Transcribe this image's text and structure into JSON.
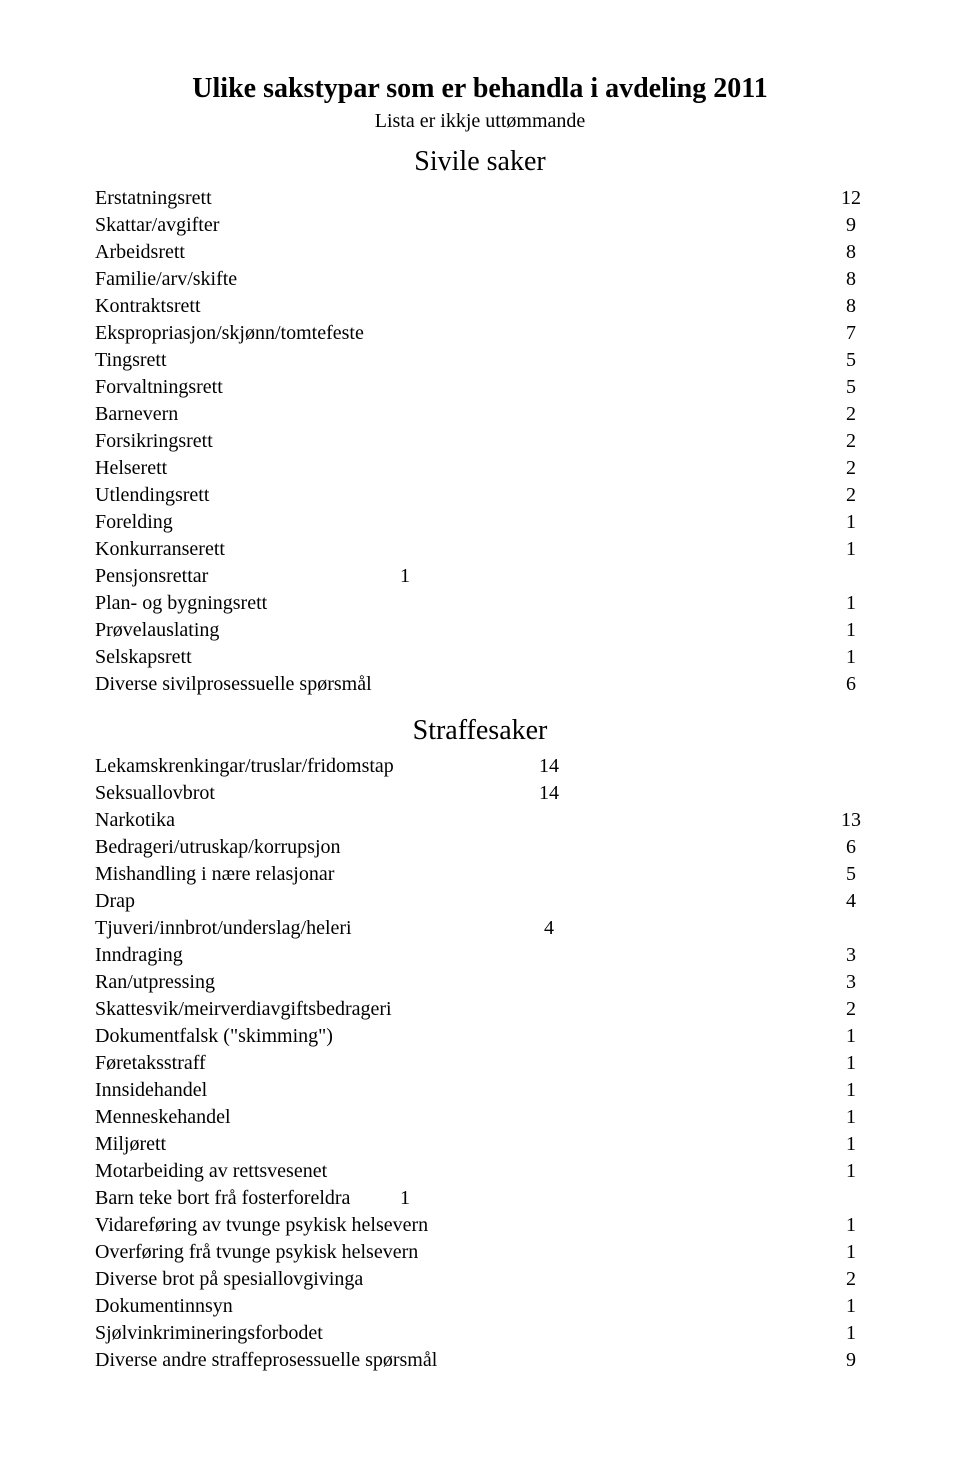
{
  "doc_title": "Ulike sakstypar som er behandla i avdeling 2011",
  "doc_subtitle": "Lista er ikkje uttømmande",
  "section1_title": "Sivile saker",
  "section2_title": "Straffesaker",
  "sivile": [
    {
      "lab": "Erstatningsrett",
      "val": "12"
    },
    {
      "lab": "Skattar/avgifter",
      "val": "9"
    },
    {
      "lab": "Arbeidsrett",
      "val": "8"
    },
    {
      "lab": "Familie/arv/skifte",
      "val": "8"
    },
    {
      "lab": "Kontraktsrett",
      "val": "8"
    },
    {
      "lab": "Ekspropriasjon/skjønn/tomtefeste",
      "val": "7"
    },
    {
      "lab": "Tingsrett",
      "val": "5"
    },
    {
      "lab": "Forvaltningsrett",
      "val": "5"
    },
    {
      "lab": "Barnevern",
      "val": "2"
    },
    {
      "lab": "Forsikringsrett",
      "val": "2"
    },
    {
      "lab": "Helserett",
      "val": "2"
    },
    {
      "lab": "Utlendingsrett",
      "val": "2"
    },
    {
      "lab": "Forelding",
      "val": "1"
    },
    {
      "lab": "Konkurranserett",
      "val": "1"
    },
    {
      "lab": "Pensjonsrettar",
      "mid": "1"
    },
    {
      "lab": "Plan- og bygningsrett",
      "val": "1"
    },
    {
      "lab": "Prøvelauslating",
      "val": "1"
    },
    {
      "lab": "Selskapsrett",
      "val": "1"
    },
    {
      "lab": "Diverse sivilprosessuelle spørsmål",
      "val": "6"
    }
  ],
  "straffe": [
    {
      "lab": "Lekamskrenkingar/truslar/fridomstap",
      "mid": "14",
      "col": 2
    },
    {
      "lab": "Seksuallovbrot",
      "mid": "14",
      "col": 2
    },
    {
      "lab": "Narkotika",
      "val": "13"
    },
    {
      "lab": "Bedrageri/utruskap/korrupsjon",
      "val": "6"
    },
    {
      "lab": "Mishandling i nære relasjonar",
      "val": "5"
    },
    {
      "lab": "Drap",
      "val": "4"
    },
    {
      "lab": "Tjuveri/innbrot/underslag/heleri",
      "mid": "4",
      "col": 2
    },
    {
      "lab": "Inndraging",
      "val": "3"
    },
    {
      "lab": "Ran/utpressing",
      "val": "3"
    },
    {
      "lab": "Skattesvik/meirverdiavgiftsbedrageri",
      "val": "2"
    },
    {
      "lab": "Dokumentfalsk (\"skimming\")",
      "val": "1"
    },
    {
      "lab": "Føretaksstraff",
      "val": "1"
    },
    {
      "lab": "Innsidehandel",
      "val": "1"
    },
    {
      "lab": "Menneskehandel",
      "val": "1"
    },
    {
      "lab": "Miljørett",
      "val": "1"
    },
    {
      "lab": "Motarbeiding av rettsvesenet",
      "val": "1"
    },
    {
      "lab": "Barn teke bort frå fosterforeldra",
      "mid": "1",
      "col": 1
    },
    {
      "lab": "Vidareføring av tvunge psykisk helsevern",
      "val": "1"
    },
    {
      "lab": "Overføring frå tvunge psykisk helsevern",
      "val": "1"
    },
    {
      "lab": "Diverse brot på spesiallovgivinga",
      "val": "2"
    },
    {
      "lab": "Dokumentinnsyn",
      "val": "1"
    },
    {
      "lab": "Sjølvinkrimineringsforbodet",
      "val": "1"
    },
    {
      "lab": "Diverse andre straffeprosessuelle spørsmål",
      "val": "9"
    }
  ]
}
